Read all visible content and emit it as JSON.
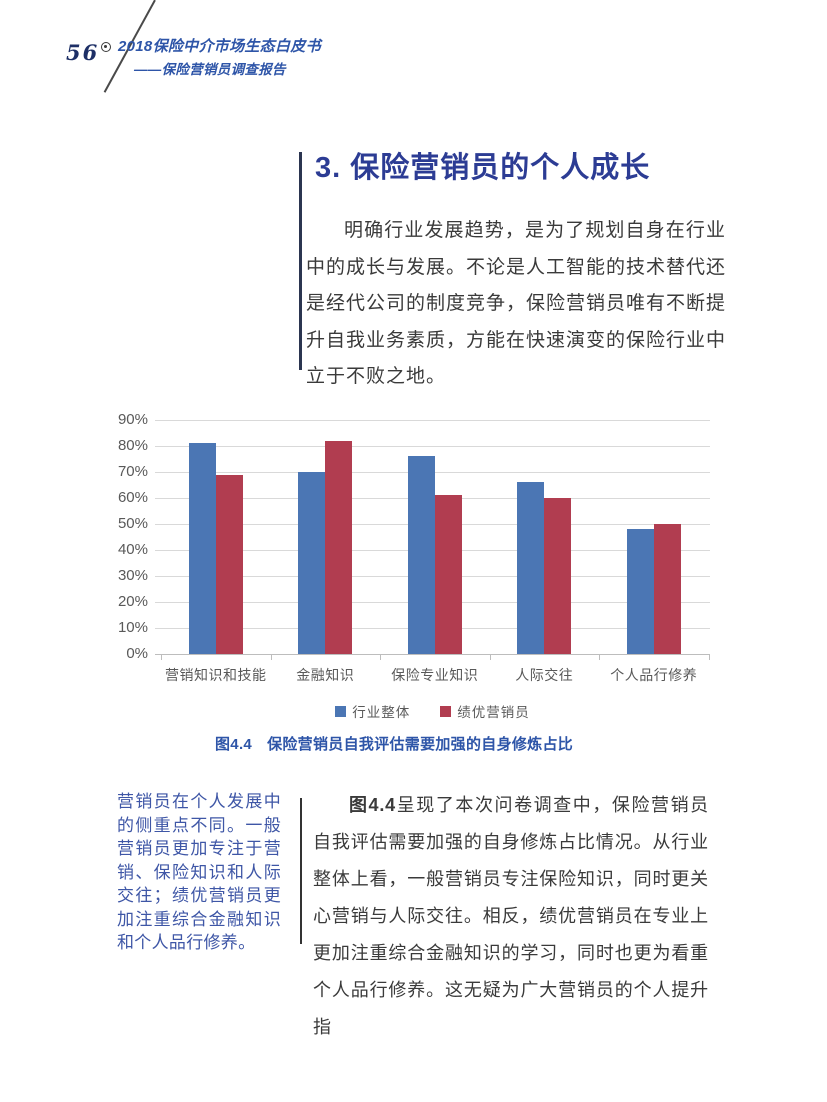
{
  "header": {
    "page_number": "56",
    "title": "2018保险中介市场生态白皮书",
    "subtitle": "——保险营销员调查报告"
  },
  "section": {
    "title": "3. 保险营销员的个人成长",
    "intro": "明确行业发展趋势，是为了规划自身在行业中的成长与发展。不论是人工智能的技术替代还是经代公司的制度竞争，保险营销员唯有不断提升自我业务素质，方能在快速演变的保险行业中立于不败之地。"
  },
  "chart_data": {
    "type": "bar",
    "title": "",
    "categories": [
      "营销知识和技能",
      "金融知识",
      "保险专业知识",
      "人际交往",
      "个人品行修养"
    ],
    "series": [
      {
        "name": "行业整体",
        "color": "#4b76b4",
        "values": [
          81,
          70,
          76,
          66,
          48
        ]
      },
      {
        "name": "绩优营销员",
        "color": "#b13d50",
        "values": [
          69,
          82,
          61,
          60,
          50
        ]
      }
    ],
    "xlabel": "",
    "ylabel": "",
    "ylim": [
      0,
      90
    ],
    "ytick_step": 10,
    "ytick_suffix": "%",
    "grid": true,
    "legend_position": "bottom"
  },
  "figure": {
    "caption_label": "图4.4",
    "caption_text": "保险营销员自我评估需要加强的自身修炼占比"
  },
  "sidenote": "营销员在个人发展中的侧重点不同。一般营销员更加专注于营销、保险知识和人际交往；绩优营销员更加注重综合金融知识和个人品行修养。",
  "body": {
    "figure_ref": "图4.4",
    "text": "呈现了本次问卷调查中，保险营销员自我评估需要加强的自身修炼占比情况。从行业整体上看，一般营销员专注保险知识，同时更关心营销与人际交往。相反，绩优营销员在专业上更加注重综合金融知识的学习，同时也更为看重个人品行修养。这无疑为广大营销员的个人提升指"
  },
  "colors": {
    "accent_blue": "#2e55a8",
    "title_navy": "#2c3c94",
    "note_blue": "#3e56a6",
    "bar_blue": "#4b76b4",
    "bar_red": "#b13d50",
    "grid_gray": "#d9d9d9",
    "axis_text": "#595959"
  }
}
